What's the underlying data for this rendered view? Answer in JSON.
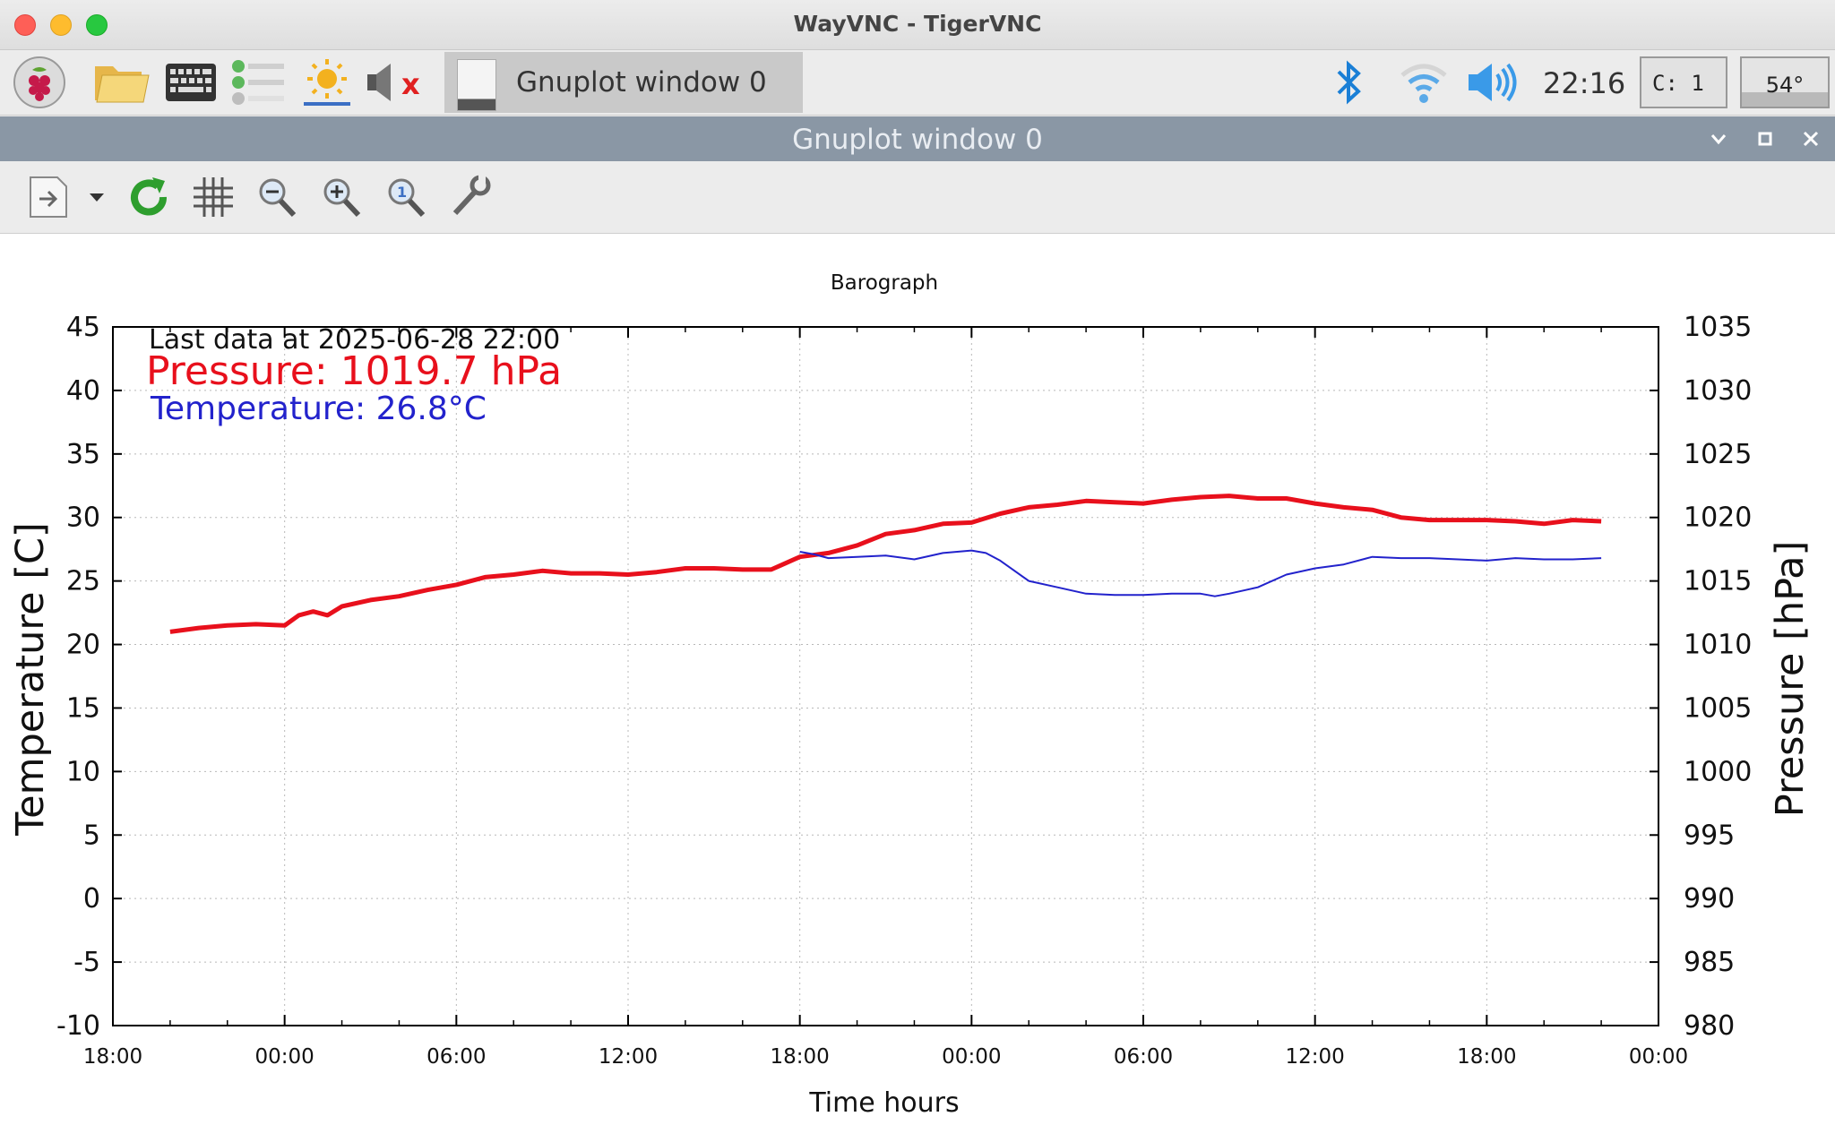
{
  "window": {
    "title": "WayVNC - TigerVNC"
  },
  "panel": {
    "icons": [
      "raspberry-icon",
      "folder-icon",
      "keyboard-icon",
      "tasks-icon",
      "brightness-icon",
      "mute-icon"
    ],
    "task_label": "Gnuplot window 0",
    "clock": "22:16",
    "cpu_label": "C: 1",
    "temp_label": "54°",
    "colors": {
      "bluetooth": "#1a7fd6",
      "muted_x": "#e02020"
    }
  },
  "gnuplot_window": {
    "title": "Gnuplot window 0"
  },
  "toolbar": {
    "icons": [
      "export-icon",
      "dropdown-icon",
      "replot-icon",
      "grid-icon",
      "zoom-previous-icon",
      "zoom-next-icon",
      "autoscale-icon",
      "settings-icon"
    ]
  },
  "chart_data": {
    "type": "line",
    "title": "Barograph",
    "xlabel": "Time hours",
    "ylabel": "Temperature [C]",
    "y2label": "Pressure [hPa]",
    "ylim": [
      -10,
      45
    ],
    "y2lim": [
      980,
      1035
    ],
    "yticks": [
      -10,
      -5,
      0,
      5,
      10,
      15,
      20,
      25,
      30,
      35,
      40,
      45
    ],
    "y2ticks": [
      980,
      985,
      990,
      995,
      1000,
      1005,
      1010,
      1015,
      1020,
      1025,
      1030,
      1035
    ],
    "xlim": [
      0,
      54
    ],
    "xticks": [
      {
        "h": 0,
        "label": "18:00"
      },
      {
        "h": 6,
        "label": "00:00"
      },
      {
        "h": 12,
        "label": "06:00"
      },
      {
        "h": 18,
        "label": "12:00"
      },
      {
        "h": 24,
        "label": "18:00"
      },
      {
        "h": 30,
        "label": "00:00"
      },
      {
        "h": 36,
        "label": "06:00"
      },
      {
        "h": 42,
        "label": "12:00"
      },
      {
        "h": 48,
        "label": "18:00"
      },
      {
        "h": 54,
        "label": "00:00"
      }
    ],
    "grid": true,
    "annotations": {
      "last_data": "Last data at 2025-06-28 22:00",
      "pressure_readout": "Pressure: 1019.7 hPa",
      "temperature_readout": "Temperature: 26.8°C"
    },
    "series": [
      {
        "axis": "y2",
        "color": "#e8101c",
        "x": [
          2,
          3,
          4,
          5,
          6,
          6.5,
          7,
          7.5,
          8,
          9,
          10,
          11,
          12,
          13,
          14,
          15,
          16,
          17,
          18,
          19,
          20,
          21,
          22,
          23,
          23.5,
          24,
          25,
          26,
          27,
          28,
          29,
          30,
          31,
          32,
          33,
          34,
          35,
          36,
          37,
          38,
          39,
          40,
          41,
          42,
          43,
          44,
          45,
          46,
          47,
          48,
          49,
          50,
          51,
          52
        ],
        "values": [
          1011,
          1011.3,
          1011.5,
          1011.6,
          1011.5,
          1012.3,
          1012.6,
          1012.3,
          1013,
          1013.5,
          1013.8,
          1014.3,
          1014.7,
          1015.3,
          1015.5,
          1015.8,
          1015.6,
          1015.6,
          1015.5,
          1015.7,
          1016,
          1016,
          1015.9,
          1015.9,
          1016.4,
          1016.9,
          1017.2,
          1017.8,
          1018.7,
          1019,
          1019.5,
          1019.6,
          1020.3,
          1020.8,
          1021,
          1021.3,
          1021.2,
          1021.1,
          1021.4,
          1021.6,
          1021.7,
          1021.5,
          1021.5,
          1021.1,
          1020.8,
          1020.6,
          1020,
          1019.8,
          1019.8,
          1019.8,
          1019.7,
          1019.5,
          1019.8,
          1019.7
        ]
      },
      {
        "axis": "y",
        "color": "#2222cc",
        "x": [
          24,
          24.5,
          25,
          26,
          27,
          28,
          29,
          30,
          30.5,
          31,
          32,
          33,
          34,
          35,
          36,
          37,
          38,
          38.5,
          39,
          40,
          41,
          42,
          43,
          44,
          45,
          46,
          47,
          48,
          49,
          50,
          51,
          52
        ],
        "values": [
          27.3,
          27.1,
          26.8,
          26.9,
          27,
          26.7,
          27.2,
          27.4,
          27.2,
          26.6,
          25,
          24.5,
          24,
          23.9,
          23.9,
          24,
          24,
          23.8,
          24,
          24.5,
          25.5,
          26,
          26.3,
          26.9,
          26.8,
          26.8,
          26.7,
          26.6,
          26.8,
          26.7,
          26.7,
          26.8
        ]
      }
    ]
  }
}
